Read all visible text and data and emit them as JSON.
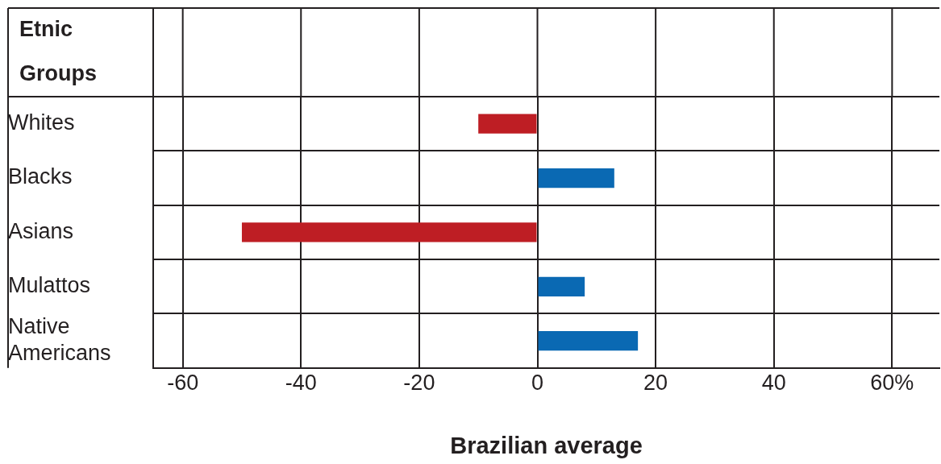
{
  "chart_data": {
    "type": "bar",
    "orientation": "horizontal",
    "ylabel": "Etnic Groups",
    "xlabel": "Brazilian average",
    "categories": [
      "Whites",
      "Blacks",
      "Asians",
      "Mulattos",
      "Native Americans"
    ],
    "values": [
      -10,
      13,
      -50,
      8,
      17
    ],
    "colors": [
      "#be1e24",
      "#0a69b3",
      "#be1e24",
      "#0a69b3",
      "#0a69b3"
    ],
    "xlim": [
      -65,
      68
    ],
    "xticks": [
      -60,
      -40,
      -20,
      0,
      20,
      40,
      {
        "value": 60,
        "label": "60%"
      }
    ],
    "grid": true
  }
}
